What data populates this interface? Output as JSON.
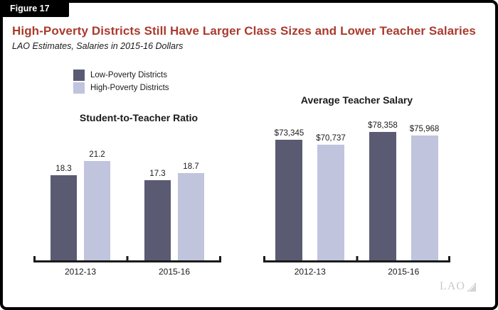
{
  "figure": {
    "label": "Figure 17",
    "title": "High-Poverty Districts Still Have Larger Class Sizes and Lower Teacher Salaries",
    "subtitle": "LAO Estimates, Salaries in 2015-16 Dollars",
    "watermark": "LAO"
  },
  "colors": {
    "title_red": "#a93b2e",
    "bar_dark": "#5a5b72",
    "bar_light": "#c0c4dd",
    "axis_black": "#1a1a1a",
    "watermark_gray": "#c9cacf"
  },
  "legend": {
    "items": [
      {
        "label": "Low-Poverty Districts",
        "color": "#5a5b72"
      },
      {
        "label": "High-Poverty Districts",
        "color": "#c0c4dd"
      }
    ]
  },
  "chart_data": [
    {
      "type": "bar",
      "title": "Student-to-Teacher Ratio",
      "categories": [
        "2012-13",
        "2015-16"
      ],
      "series": [
        {
          "name": "Low-Poverty Districts",
          "color": "#5a5b72",
          "values": [
            18.3,
            17.3
          ]
        },
        {
          "name": "High-Poverty Districts",
          "color": "#c0c4dd",
          "values": [
            21.2,
            18.7
          ]
        }
      ],
      "value_labels": [
        [
          "18.3",
          "21.2"
        ],
        [
          "17.3",
          "18.7"
        ]
      ],
      "ylabel": "",
      "xlabel": "",
      "ylim": [
        0,
        27.5
      ],
      "grid": false,
      "legend_position": "top-left"
    },
    {
      "type": "bar",
      "title": "Average Teacher Salary",
      "categories": [
        "2012-13",
        "2015-16"
      ],
      "series": [
        {
          "name": "Low-Poverty Districts",
          "color": "#5a5b72",
          "values": [
            73345,
            78358
          ]
        },
        {
          "name": "High-Poverty Districts",
          "color": "#c0c4dd",
          "values": [
            70737,
            75968
          ]
        }
      ],
      "value_labels": [
        [
          "$73,345",
          "$70,737"
        ],
        [
          "$78,358",
          "$75,968"
        ]
      ],
      "ylabel": "",
      "xlabel": "",
      "ylim": [
        0,
        85000
      ],
      "grid": false
    }
  ]
}
